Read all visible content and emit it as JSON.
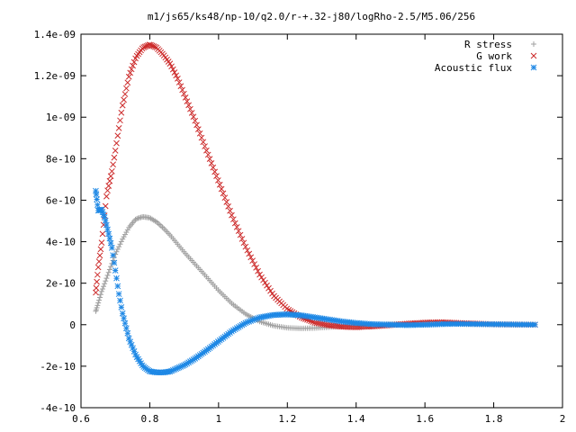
{
  "chart_data": {
    "type": "scatter",
    "title": "m1/js65/ks48/np-10/q2.0/r-+.32-j80/logRho-2.5/M5.06/256",
    "xlim": [
      0.6,
      2.0
    ],
    "ylim": [
      -4e-10,
      1.4e-09
    ],
    "x_ticks": [
      0.6,
      0.8,
      1.0,
      1.2,
      1.4,
      1.6,
      1.8,
      2.0
    ],
    "x_tick_labels": [
      "0.6",
      "0.8",
      "1",
      "1.2",
      "1.4",
      "1.6",
      "1.8",
      "2"
    ],
    "y_ticks": [
      -4e-10,
      -2e-10,
      0,
      2e-10,
      4e-10,
      6e-10,
      8e-10,
      1e-09,
      1.2e-09,
      1.4e-09
    ],
    "y_tick_labels": [
      "-4e-10",
      "-2e-10",
      "0",
      "2e-10",
      "4e-10",
      "6e-10",
      "8e-10",
      "1e-09",
      "1.2e-09",
      "1.4e-09"
    ],
    "grid": false,
    "legend": "top-right",
    "series": [
      {
        "name": "R stress",
        "marker": "plus",
        "color": "#a0a0a0",
        "x": [
          0.643,
          0.66,
          0.68,
          0.7,
          0.72,
          0.74,
          0.76,
          0.78,
          0.8,
          0.82,
          0.84,
          0.86,
          0.88,
          0.9,
          0.93,
          0.96,
          1.0,
          1.04,
          1.08,
          1.12,
          1.16,
          1.2,
          1.24,
          1.28,
          1.32,
          1.36,
          1.4,
          1.45,
          1.5,
          1.6,
          1.7,
          1.8,
          1.92
        ],
        "y": [
          6.5e-11,
          1.6e-10,
          2.5e-10,
          3.4e-10,
          4.1e-10,
          4.7e-10,
          5.1e-10,
          5.2e-10,
          5.15e-10,
          4.95e-10,
          4.65e-10,
          4.3e-10,
          3.9e-10,
          3.5e-10,
          2.95e-10,
          2.4e-10,
          1.65e-10,
          1e-10,
          5e-11,
          1.5e-11,
          -5e-12,
          -1.5e-11,
          -1.8e-11,
          -1.6e-11,
          -1.2e-11,
          -8e-12,
          -4e-12,
          0,
          3e-12,
          5e-12,
          3e-12,
          1e-12,
          0
        ]
      },
      {
        "name": "G work",
        "marker": "cross",
        "color": "#cc2a2a",
        "x": [
          0.643,
          0.65,
          0.66,
          0.675,
          0.69,
          0.7,
          0.72,
          0.74,
          0.76,
          0.78,
          0.8,
          0.82,
          0.84,
          0.86,
          0.88,
          0.9,
          0.93,
          0.96,
          1.0,
          1.04,
          1.08,
          1.12,
          1.16,
          1.2,
          1.24,
          1.28,
          1.32,
          1.36,
          1.4,
          1.45,
          1.5,
          1.55,
          1.6,
          1.65,
          1.7,
          1.8,
          1.92
        ],
        "y": [
          1.55e-10,
          2.75e-10,
          3.95e-10,
          6.3e-10,
          7.4e-10,
          8.4e-10,
          1.05e-09,
          1.2e-09,
          1.29e-09,
          1.335e-09,
          1.35e-09,
          1.335e-09,
          1.3e-09,
          1.255e-09,
          1.19e-09,
          1.11e-09,
          9.9e-10,
          8.6e-10,
          6.9e-10,
          5.2e-10,
          3.7e-10,
          2.4e-10,
          1.4e-10,
          7.5e-11,
          3.5e-11,
          1e-11,
          -3e-12,
          -1e-11,
          -1.2e-11,
          -8e-12,
          -2e-12,
          5e-12,
          1e-11,
          1.2e-11,
          8e-12,
          2e-12,
          0
        ]
      },
      {
        "name": "Acoustic flux",
        "marker": "star",
        "color": "#1e88e5",
        "x": [
          0.643,
          0.65,
          0.66,
          0.67,
          0.68,
          0.69,
          0.7,
          0.71,
          0.72,
          0.74,
          0.76,
          0.78,
          0.8,
          0.82,
          0.84,
          0.86,
          0.88,
          0.9,
          0.93,
          0.96,
          1.0,
          1.04,
          1.08,
          1.12,
          1.16,
          1.2,
          1.24,
          1.28,
          1.32,
          1.36,
          1.4,
          1.45,
          1.5,
          1.55,
          1.6,
          1.65,
          1.7,
          1.8,
          1.92
        ],
        "y": [
          6.45e-10,
          5.5e-10,
          5.55e-10,
          5.1e-10,
          4.4e-10,
          3.7e-10,
          2.6e-10,
          1.5e-10,
          6e-11,
          -7e-11,
          -1.5e-10,
          -2e-10,
          -2.25e-10,
          -2.3e-10,
          -2.3e-10,
          -2.25e-10,
          -2.1e-10,
          -1.95e-10,
          -1.65e-10,
          -1.3e-10,
          -8e-11,
          -3e-11,
          1e-11,
          3.5e-11,
          4.7e-11,
          5e-11,
          4.5e-11,
          3.5e-11,
          2.5e-11,
          1.5e-11,
          8e-12,
          2e-12,
          0,
          -2e-12,
          0,
          3e-12,
          4e-12,
          2e-12,
          0
        ]
      }
    ]
  }
}
